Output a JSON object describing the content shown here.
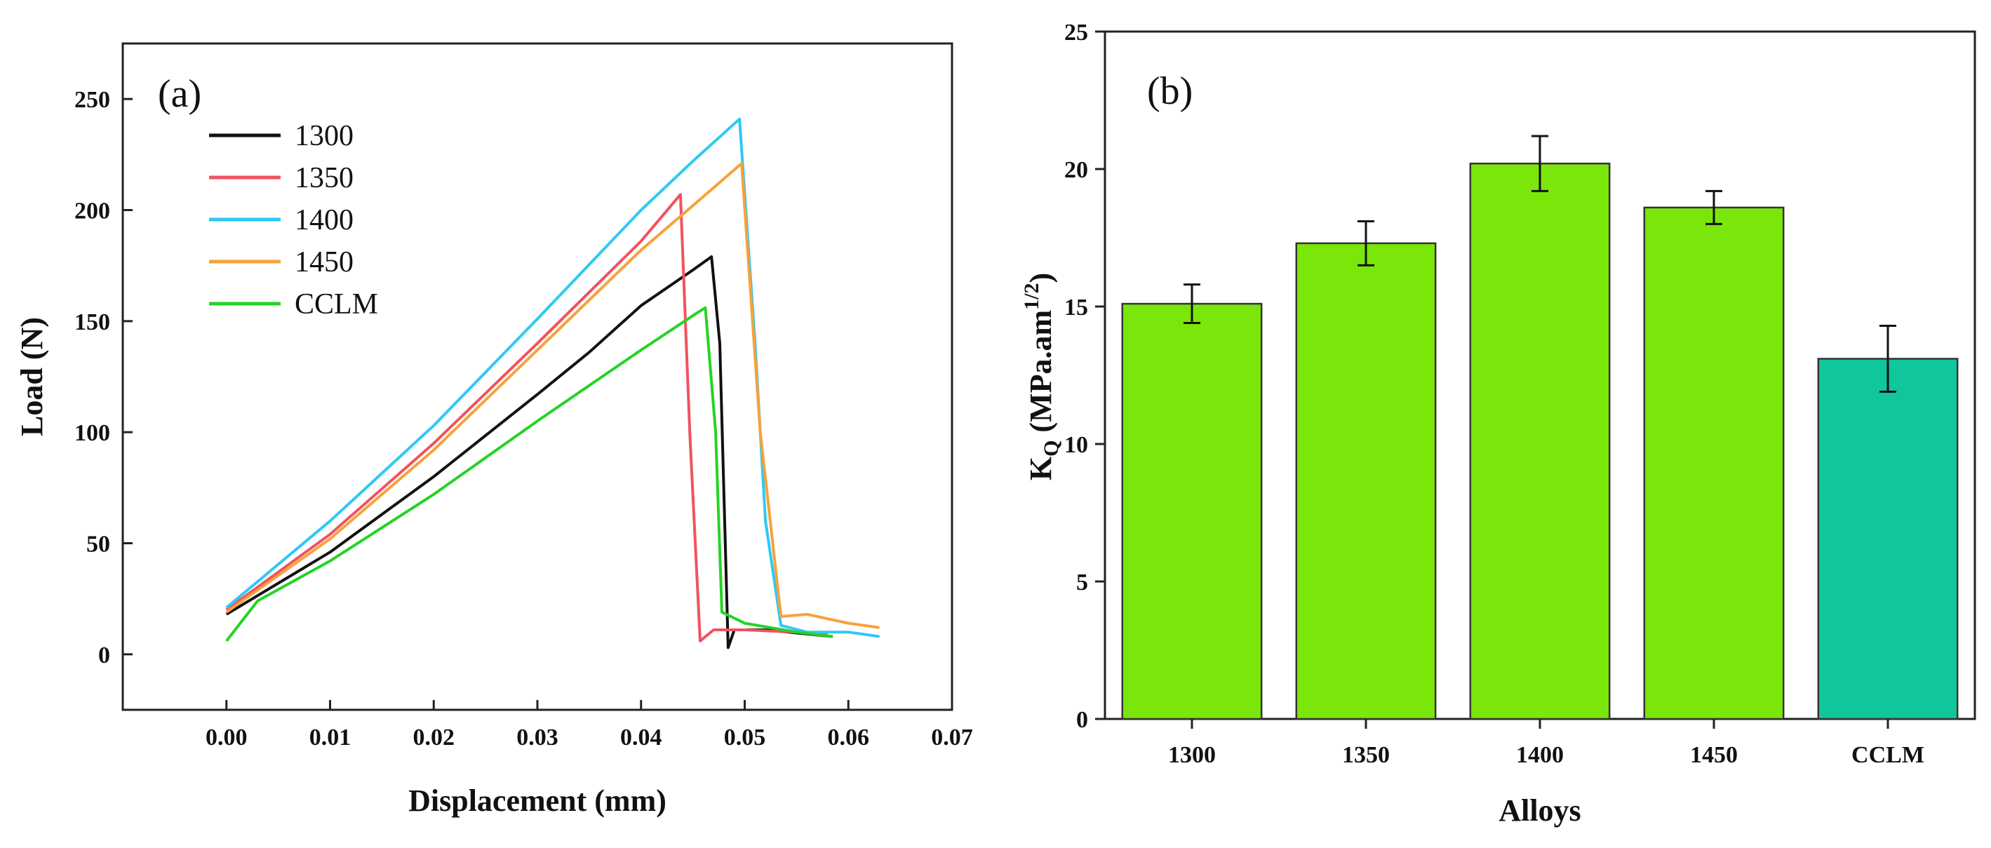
{
  "chart_data": [
    {
      "type": "line",
      "panel_label": "(a)",
      "xlabel": "Displacement (mm)",
      "ylabel": "Load (N)",
      "xlim": [
        -0.01,
        0.07
      ],
      "ylim": [
        -25,
        275
      ],
      "xticks": [
        0.0,
        0.01,
        0.02,
        0.03,
        0.04,
        0.05,
        0.06,
        0.07
      ],
      "xtick_labels": [
        "0.00",
        "0.01",
        "0.02",
        "0.03",
        "0.04",
        "0.05",
        "0.06",
        "0.07"
      ],
      "yticks": [
        0,
        50,
        100,
        150,
        200,
        250
      ],
      "ytick_labels": [
        "0",
        "50",
        "100",
        "150",
        "200",
        "250"
      ],
      "legend_position": "top-left",
      "series": [
        {
          "name": "1300",
          "color": "#111111",
          "points": [
            [
              0.0,
              18
            ],
            [
              0.01,
              46
            ],
            [
              0.02,
              80
            ],
            [
              0.03,
              117
            ],
            [
              0.035,
              136
            ],
            [
              0.04,
              157
            ],
            [
              0.045,
              173
            ],
            [
              0.0468,
              179
            ],
            [
              0.0476,
              140
            ],
            [
              0.0484,
              3
            ],
            [
              0.049,
              11
            ],
            [
              0.052,
              11
            ],
            [
              0.0585,
              8
            ]
          ]
        },
        {
          "name": "1350",
          "color": "#f0535f",
          "points": [
            [
              0.0,
              20
            ],
            [
              0.01,
              54
            ],
            [
              0.02,
              95
            ],
            [
              0.03,
              140
            ],
            [
              0.04,
              186
            ],
            [
              0.0438,
              207
            ],
            [
              0.0447,
              100
            ],
            [
              0.0457,
              6
            ],
            [
              0.047,
              11
            ],
            [
              0.05,
              11
            ],
            [
              0.055,
              10
            ],
            [
              0.058,
              9
            ]
          ]
        },
        {
          "name": "1400",
          "color": "#2ec9f5",
          "points": [
            [
              0.0,
              21
            ],
            [
              0.01,
              60
            ],
            [
              0.02,
              103
            ],
            [
              0.03,
              151
            ],
            [
              0.04,
              200
            ],
            [
              0.045,
              222
            ],
            [
              0.0495,
              241
            ],
            [
              0.051,
              140
            ],
            [
              0.052,
              60
            ],
            [
              0.0535,
              13
            ],
            [
              0.056,
              10
            ],
            [
              0.06,
              10
            ],
            [
              0.063,
              8
            ]
          ]
        },
        {
          "name": "1450",
          "color": "#f7a23b",
          "points": [
            [
              0.0,
              19
            ],
            [
              0.01,
              52
            ],
            [
              0.02,
              92
            ],
            [
              0.03,
              137
            ],
            [
              0.04,
              182
            ],
            [
              0.045,
              202
            ],
            [
              0.0497,
              221
            ],
            [
              0.0515,
              100
            ],
            [
              0.0535,
              17
            ],
            [
              0.056,
              18
            ],
            [
              0.06,
              14
            ],
            [
              0.063,
              12
            ]
          ]
        },
        {
          "name": "CCLM",
          "color": "#25d325",
          "points": [
            [
              0.0,
              6
            ],
            [
              0.003,
              24
            ],
            [
              0.01,
              42
            ],
            [
              0.02,
              72
            ],
            [
              0.03,
              105
            ],
            [
              0.04,
              137
            ],
            [
              0.0455,
              154
            ],
            [
              0.0462,
              156
            ],
            [
              0.0472,
              100
            ],
            [
              0.0478,
              19
            ],
            [
              0.05,
              14
            ],
            [
              0.055,
              10
            ],
            [
              0.0585,
              8
            ]
          ]
        }
      ]
    },
    {
      "type": "bar",
      "panel_label": "(b)",
      "xlabel": "Alloys",
      "ylabel": "K",
      "ylabel_subscript": "Q",
      "ylabel_units": " (MPa.am",
      "ylabel_superscript": "1/2",
      "ylabel_close": ")",
      "ylim": [
        0,
        25
      ],
      "yticks": [
        0,
        5,
        10,
        15,
        20,
        25
      ],
      "ytick_labels": [
        "0",
        "5",
        "10",
        "15",
        "20",
        "25"
      ],
      "categories": [
        "1300",
        "1350",
        "1400",
        "1450",
        "CCLM"
      ],
      "values": [
        15.1,
        17.3,
        20.2,
        18.6,
        13.1
      ],
      "errors": [
        0.7,
        0.8,
        1.0,
        0.6,
        1.2
      ],
      "bar_colors": [
        "#7be60a",
        "#7be60a",
        "#7be60a",
        "#7be60a",
        "#0fc79a"
      ]
    }
  ]
}
